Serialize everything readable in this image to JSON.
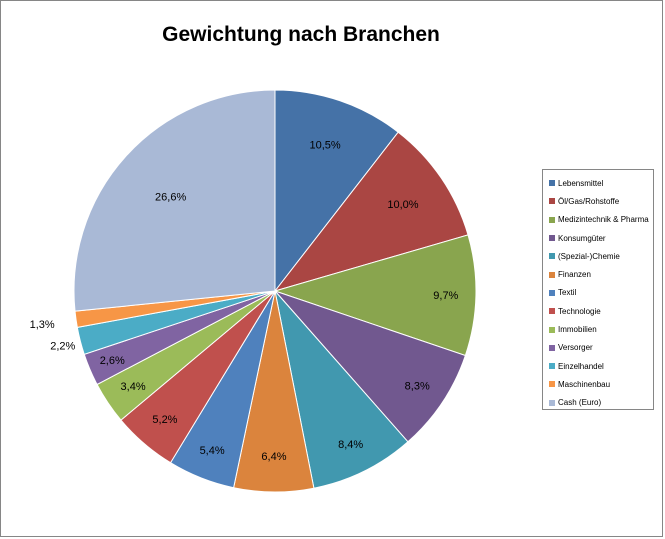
{
  "chart_data": {
    "type": "pie",
    "title": "Gewichtung nach Branchen",
    "legend_position": "right",
    "slices": [
      {
        "name": "Lebensmittel",
        "value": 10.5,
        "label": "10,5%",
        "color": "#4572A7"
      },
      {
        "name": "Öl/Gas/Rohstoffe",
        "value": 10.0,
        "label": "10,0%",
        "color": "#AA4643"
      },
      {
        "name": "Medizintechnik & Pharma",
        "value": 9.7,
        "label": "9,7%",
        "color": "#89A54E"
      },
      {
        "name": "Konsumgüter",
        "value": 8.3,
        "label": "8,3%",
        "color": "#71588F"
      },
      {
        "name": "(Spezial-)Chemie",
        "value": 8.4,
        "label": "8,4%",
        "color": "#4198AF"
      },
      {
        "name": "Finanzen",
        "value": 6.4,
        "label": "6,4%",
        "color": "#DB843D"
      },
      {
        "name": "Textil",
        "value": 5.4,
        "label": "5,4%",
        "color": "#4F81BD"
      },
      {
        "name": "Technologie",
        "value": 5.2,
        "label": "5,2%",
        "color": "#C0504D"
      },
      {
        "name": "Immobilien",
        "value": 3.4,
        "label": "3,4%",
        "color": "#9BBB59"
      },
      {
        "name": "Versorger",
        "value": 2.6,
        "label": "2,6%",
        "color": "#8064A2"
      },
      {
        "name": "Einzelhandel",
        "value": 2.2,
        "label": "2,2%",
        "color": "#4BACC6"
      },
      {
        "name": "Maschinenbau",
        "value": 1.3,
        "label": "1,3%",
        "color": "#F79646"
      },
      {
        "name": "Cash (Euro)",
        "value": 26.6,
        "label": "26,6%",
        "color": "#A9B9D6"
      }
    ]
  }
}
